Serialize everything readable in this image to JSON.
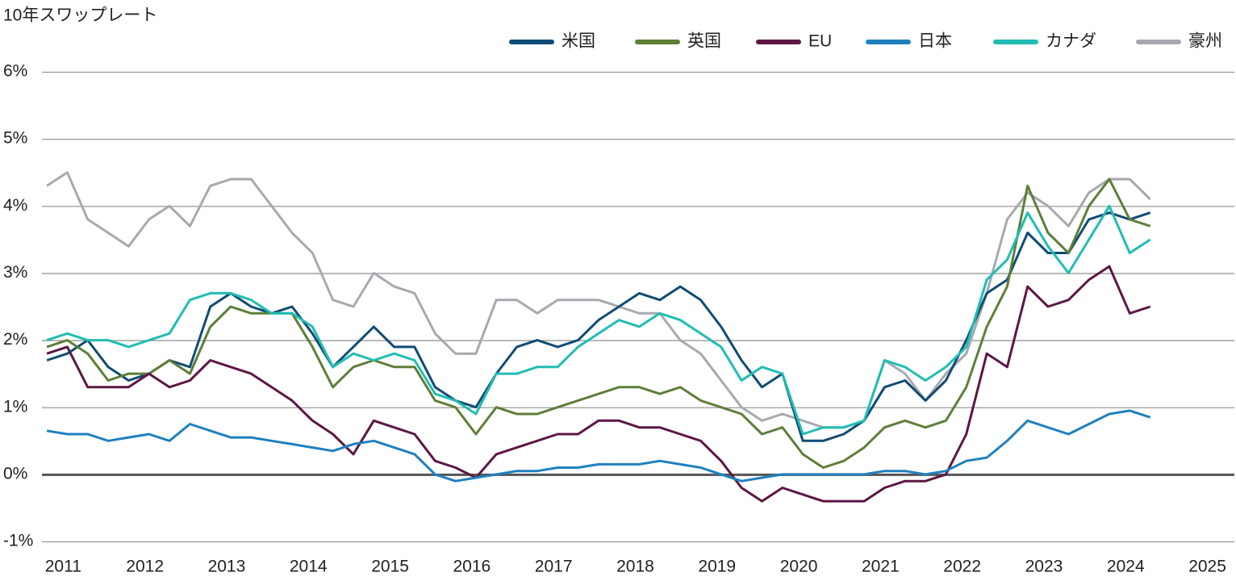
{
  "chart_data": {
    "type": "line",
    "title": "10年スワップレート",
    "x": [
      2010.8,
      2011.05,
      2011.3,
      2011.55,
      2011.8,
      2012.05,
      2012.3,
      2012.55,
      2012.8,
      2013.05,
      2013.3,
      2013.55,
      2013.8,
      2014.05,
      2014.3,
      2014.55,
      2014.8,
      2015.05,
      2015.3,
      2015.55,
      2015.8,
      2016.05,
      2016.3,
      2016.55,
      2016.8,
      2017.05,
      2017.3,
      2017.55,
      2017.8,
      2018.05,
      2018.3,
      2018.55,
      2018.8,
      2019.05,
      2019.3,
      2019.55,
      2019.8,
      2020.05,
      2020.3,
      2020.55,
      2020.8,
      2021.05,
      2021.3,
      2021.55,
      2021.8,
      2022.05,
      2022.3,
      2022.55,
      2022.8,
      2023.05,
      2023.3,
      2023.55,
      2023.8,
      2024.05,
      2024.3
    ],
    "xlim": [
      2010.74,
      2025.33
    ],
    "xticks": [
      2011,
      2012,
      2013,
      2014,
      2015,
      2016,
      2017,
      2018,
      2019,
      2020,
      2021,
      2022,
      2023,
      2024,
      2025
    ],
    "ylim": [
      -1,
      6
    ],
    "yticks": [
      {
        "value": -1,
        "label": "-1%"
      },
      {
        "value": 0,
        "label": "0%"
      },
      {
        "value": 1,
        "label": "1%"
      },
      {
        "value": 2,
        "label": "2%"
      },
      {
        "value": 3,
        "label": "3%"
      },
      {
        "value": 4,
        "label": "4%"
      },
      {
        "value": 5,
        "label": "5%"
      },
      {
        "value": 6,
        "label": "6%"
      }
    ],
    "grid": true,
    "legend": "top-right",
    "series": [
      {
        "name": "豪州",
        "color": "#a7a9b0",
        "values": [
          4.3,
          4.5,
          3.8,
          3.6,
          3.4,
          3.8,
          4.0,
          3.7,
          4.3,
          4.4,
          4.4,
          4.0,
          3.6,
          3.3,
          2.6,
          2.5,
          3.0,
          2.8,
          2.7,
          2.1,
          1.8,
          1.8,
          2.6,
          2.6,
          2.4,
          2.6,
          2.6,
          2.6,
          2.5,
          2.4,
          2.4,
          2.0,
          1.8,
          1.4,
          1.0,
          0.8,
          0.9,
          0.8,
          0.7,
          0.7,
          0.8,
          1.7,
          1.5,
          1.1,
          1.5,
          1.8,
          2.7,
          3.8,
          4.2,
          4.0,
          3.7,
          4.2,
          4.4,
          4.4,
          4.1
        ]
      },
      {
        "name": "米国",
        "color": "#0f4c75",
        "values": [
          1.7,
          1.8,
          2.0,
          1.6,
          1.4,
          1.5,
          1.7,
          1.6,
          2.5,
          2.7,
          2.5,
          2.4,
          2.5,
          2.1,
          1.6,
          1.9,
          2.2,
          1.9,
          1.9,
          1.3,
          1.1,
          1.0,
          1.5,
          1.9,
          2.0,
          1.9,
          2.0,
          2.3,
          2.5,
          2.7,
          2.6,
          2.8,
          2.6,
          2.2,
          1.7,
          1.3,
          1.5,
          0.5,
          0.5,
          0.6,
          0.8,
          1.3,
          1.4,
          1.1,
          1.4,
          2.0,
          2.7,
          2.9,
          3.6,
          3.3,
          3.3,
          3.8,
          3.9,
          3.8,
          3.9
        ]
      },
      {
        "name": "英国",
        "color": "#5e7f38",
        "values": [
          1.9,
          2.0,
          1.8,
          1.4,
          1.5,
          1.5,
          1.7,
          1.5,
          2.2,
          2.5,
          2.4,
          2.4,
          2.4,
          1.9,
          1.3,
          1.6,
          1.7,
          1.6,
          1.6,
          1.1,
          1.0,
          0.6,
          1.0,
          0.9,
          0.9,
          1.0,
          1.1,
          1.2,
          1.3,
          1.3,
          1.2,
          1.3,
          1.1,
          1.0,
          0.9,
          0.6,
          0.7,
          0.3,
          0.1,
          0.2,
          0.4,
          0.7,
          0.8,
          0.7,
          0.8,
          1.3,
          2.2,
          2.8,
          4.3,
          3.6,
          3.3,
          4.0,
          4.4,
          3.8,
          3.7
        ]
      },
      {
        "name": "EU",
        "color": "#5d1744",
        "values": [
          1.8,
          1.9,
          1.3,
          1.3,
          1.3,
          1.5,
          1.3,
          1.4,
          1.7,
          1.6,
          1.5,
          1.3,
          1.1,
          0.8,
          0.6,
          0.3,
          0.8,
          0.7,
          0.6,
          0.2,
          0.1,
          -0.05,
          0.3,
          0.4,
          0.5,
          0.6,
          0.6,
          0.8,
          0.8,
          0.7,
          0.7,
          0.6,
          0.5,
          0.2,
          -0.2,
          -0.4,
          -0.2,
          -0.3,
          -0.4,
          -0.4,
          -0.4,
          -0.2,
          -0.1,
          -0.1,
          0.0,
          0.6,
          1.8,
          1.6,
          2.8,
          2.5,
          2.6,
          2.9,
          3.1,
          2.4,
          2.5
        ]
      },
      {
        "name": "日本",
        "color": "#1f80bf",
        "values": [
          0.65,
          0.6,
          0.6,
          0.5,
          0.55,
          0.6,
          0.5,
          0.75,
          0.65,
          0.55,
          0.55,
          0.5,
          0.45,
          0.4,
          0.35,
          0.45,
          0.5,
          0.4,
          0.3,
          0.0,
          -0.1,
          -0.05,
          0.0,
          0.05,
          0.05,
          0.1,
          0.1,
          0.15,
          0.15,
          0.15,
          0.2,
          0.15,
          0.1,
          0.0,
          -0.1,
          -0.05,
          0.0,
          0.0,
          0.0,
          0.0,
          0.0,
          0.05,
          0.05,
          0.0,
          0.05,
          0.2,
          0.25,
          0.5,
          0.8,
          0.7,
          0.6,
          0.75,
          0.9,
          0.95,
          0.85
        ]
      },
      {
        "name": "カナダ",
        "color": "#20bdb3",
        "values": [
          2.0,
          2.1,
          2.0,
          2.0,
          1.9,
          2.0,
          2.1,
          2.6,
          2.7,
          2.7,
          2.6,
          2.4,
          2.4,
          2.2,
          1.6,
          1.8,
          1.7,
          1.8,
          1.7,
          1.2,
          1.1,
          0.9,
          1.5,
          1.5,
          1.6,
          1.6,
          1.9,
          2.1,
          2.3,
          2.2,
          2.4,
          2.3,
          2.1,
          1.9,
          1.4,
          1.6,
          1.5,
          0.6,
          0.7,
          0.7,
          0.8,
          1.7,
          1.6,
          1.4,
          1.6,
          1.9,
          2.9,
          3.2,
          3.9,
          3.4,
          3.0,
          3.5,
          4.0,
          3.3,
          3.5
        ]
      }
    ]
  }
}
